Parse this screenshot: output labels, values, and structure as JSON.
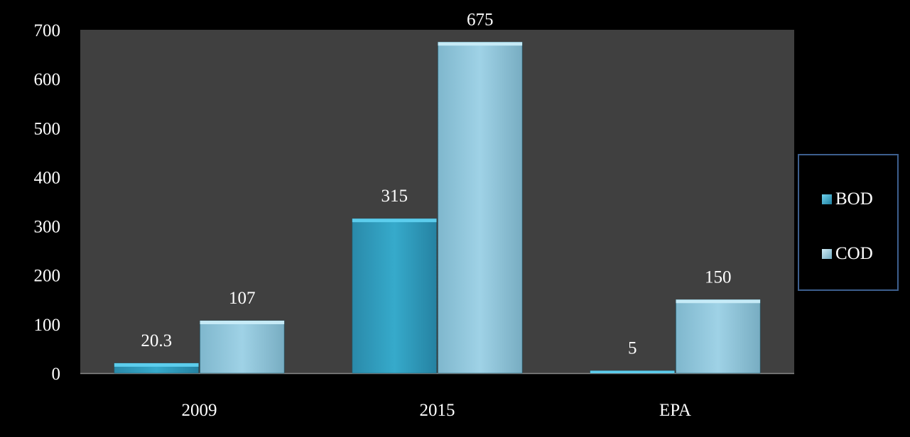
{
  "chart_data": {
    "type": "bar",
    "categories": [
      "2009",
      "2015",
      "EPA"
    ],
    "series": [
      {
        "name": "BOD",
        "values": [
          20.3,
          315,
          5
        ],
        "color": "#2e9fbf"
      },
      {
        "name": "COD",
        "values": [
          107,
          675,
          150
        ],
        "color": "#8ec5da"
      }
    ],
    "data_labels": [
      [
        "20.3",
        "315",
        "5"
      ],
      [
        "107",
        "675",
        "150"
      ]
    ],
    "ylim": [
      0,
      700
    ],
    "yticks": [
      0,
      100,
      200,
      300,
      400,
      500,
      600,
      700
    ],
    "title": "",
    "xlabel": "",
    "ylabel": "",
    "grid": false,
    "legend_position": "right",
    "plot_background": "#404040",
    "page_background": "#000000"
  },
  "legend": {
    "items": [
      {
        "label": "BOD"
      },
      {
        "label": "COD"
      }
    ]
  }
}
